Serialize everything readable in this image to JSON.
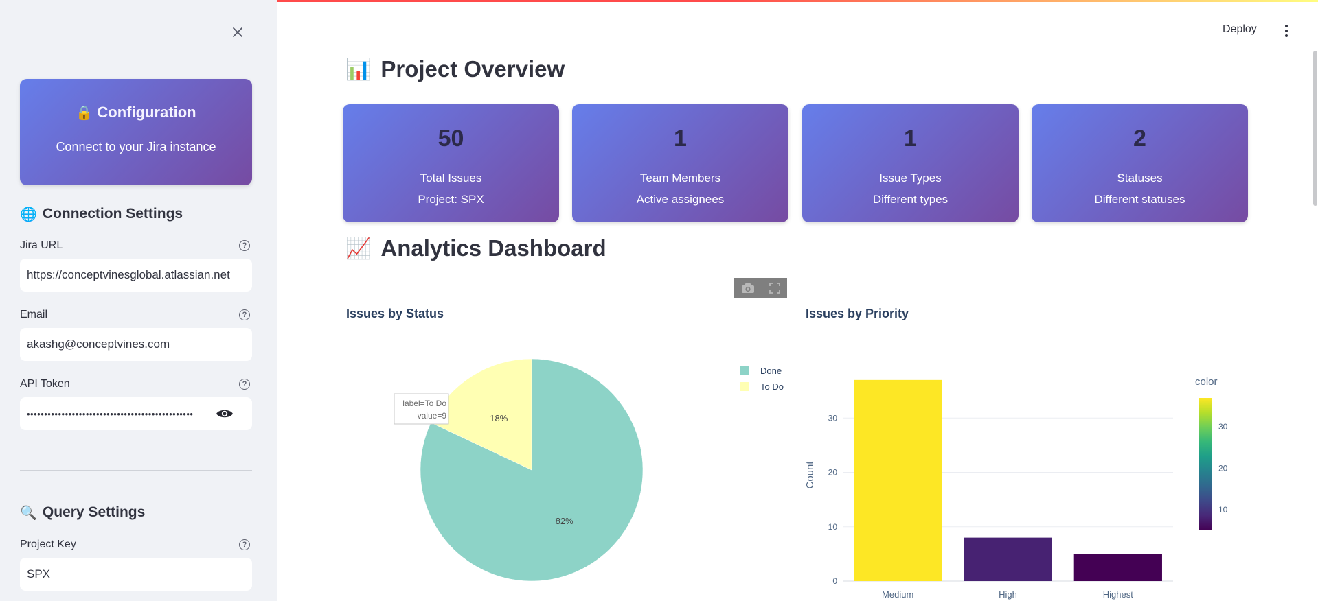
{
  "sidebar": {
    "config_card": {
      "emoji": "🔒",
      "title": "Configuration",
      "subtitle": "Connect to your Jira instance"
    },
    "connection": {
      "emoji": "🌐",
      "heading": "Connection Settings",
      "jira_url": {
        "label": "Jira URL",
        "value": "https://conceptvinesglobal.atlassian.net"
      },
      "email": {
        "label": "Email",
        "value": "akashg@conceptvines.com"
      },
      "api_token": {
        "label": "API Token",
        "masked_value": "••••••••••••••••••••••••••••••••••••••••••••••••"
      }
    },
    "query": {
      "emoji": "🔍",
      "heading": "Query Settings",
      "project_key": {
        "label": "Project Key",
        "value": "SPX"
      }
    }
  },
  "header": {
    "deploy_label": "Deploy"
  },
  "overview": {
    "emoji": "📊",
    "heading": "Project Overview",
    "metrics": [
      {
        "value": "50",
        "label": "Total Issues",
        "sub": "Project: SPX"
      },
      {
        "value": "1",
        "label": "Team Members",
        "sub": "Active assignees"
      },
      {
        "value": "1",
        "label": "Issue Types",
        "sub": "Different types"
      },
      {
        "value": "2",
        "label": "Statuses",
        "sub": "Different statuses"
      }
    ]
  },
  "analytics": {
    "emoji": "📈",
    "heading": "Analytics Dashboard"
  },
  "colors": {
    "card_gradient_start": "#667eea",
    "card_gradient_end": "#764ba2",
    "pie_done": "#8dd3c7",
    "pie_todo": "#ffffb3",
    "viridis_high": "#fde725",
    "viridis_low": "#440154"
  },
  "chart_data": [
    {
      "type": "pie",
      "title": "Issues by Status",
      "labels": [
        "Done",
        "To Do"
      ],
      "values": [
        41,
        9
      ],
      "percent_labels": [
        "82%",
        "18%"
      ],
      "legend": [
        "Done",
        "To Do"
      ],
      "legend_position": "top-right",
      "hover": {
        "line1": "label=To Do",
        "line2": "value=9"
      }
    },
    {
      "type": "bar",
      "title": "Issues by Priority",
      "categories": [
        "Medium",
        "High",
        "Highest"
      ],
      "values": [
        37,
        8,
        5
      ],
      "ylabel": "Count",
      "ylim": [
        0,
        39
      ],
      "yticks": [
        "0",
        "10",
        "20",
        "30"
      ],
      "grid": true,
      "colorbar": {
        "title": "color",
        "ticks": [
          "10",
          "20",
          "30"
        ],
        "range": [
          5,
          37
        ]
      }
    }
  ]
}
